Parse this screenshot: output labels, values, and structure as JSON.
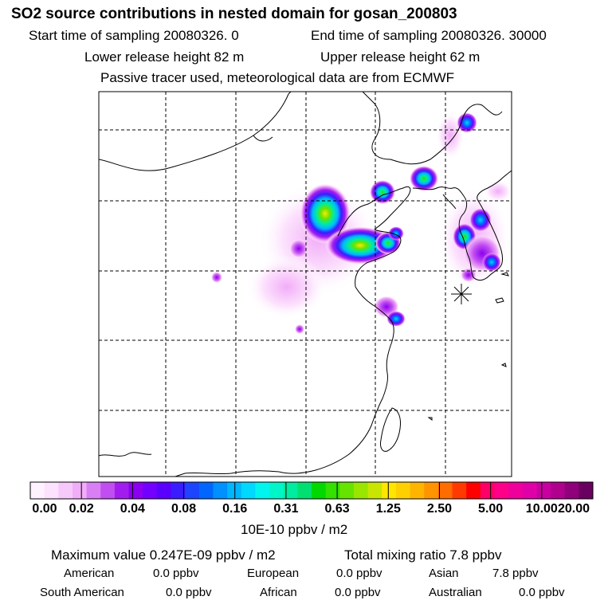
{
  "header": {
    "title": "SO2 source contributions in nested domain for gosan_200803",
    "start_sampling": "Start time of sampling 20080326.     0",
    "end_sampling": "End time of sampling 20080326. 30000",
    "lower_release": "Lower release height   82 m",
    "upper_release": "Upper release height   62 m",
    "tracer_note": "Passive tracer used, meteorological data are from ECMWF"
  },
  "map": {
    "receptor_marker": "receptor-star",
    "plumes": [
      {
        "id": "beijing-tianjin",
        "peak": 0.9
      },
      {
        "id": "shandong-north",
        "peak": 0.75
      },
      {
        "id": "shenyang",
        "peak": 0.6
      },
      {
        "id": "dalian",
        "peak": 0.55
      },
      {
        "id": "pyongyang",
        "peak": 0.45
      },
      {
        "id": "seoul",
        "peak": 0.4
      },
      {
        "id": "busan",
        "peak": 0.35
      },
      {
        "id": "shanghai",
        "peak": 0.15
      }
    ]
  },
  "colorbar": {
    "colors": [
      "#fff2ff",
      "#fce2fd",
      "#f7c9fb",
      "#f2adf8",
      "#d97ff5",
      "#c14ef1",
      "#a31cef",
      "#8b00f0",
      "#7300ff",
      "#5a00ff",
      "#3a1cff",
      "#1e44ff",
      "#0066ff",
      "#0090ff",
      "#00b6ff",
      "#00d8ff",
      "#00f5ee",
      "#00f5c8",
      "#00eca0",
      "#00e070",
      "#00d800",
      "#33e000",
      "#66e400",
      "#99e600",
      "#c8e600",
      "#ffe600",
      "#ffd000",
      "#ffb400",
      "#ff9400",
      "#ff6c00",
      "#ff3a00",
      "#ff0000",
      "#ff0066",
      "#ff0088",
      "#f0009a",
      "#e000a8",
      "#c800a0",
      "#b0008e",
      "#90007a",
      "#6a0060"
    ],
    "tick_labels": [
      "0.00",
      "0.02",
      "0.04",
      "0.08",
      "0.16",
      "0.31",
      "0.63",
      "1.25",
      "2.50",
      "5.00",
      "10.00",
      "20.00"
    ],
    "unit": "10E-10 ppbv / m2"
  },
  "summary": {
    "maximum_value": "Maximum value  0.247E-09 ppbv / m2",
    "total_mixing_ratio": "Total mixing ratio       7.8 ppbv",
    "american_label": "American",
    "american_value": "0.0 ppbv",
    "european_label": "European",
    "european_value": "0.0 ppbv",
    "asian_label": "Asian",
    "asian_value": "7.8 ppbv",
    "south_american_label": "South American",
    "south_american_value": "0.0 ppbv",
    "african_label": "African",
    "african_value": "0.0 ppbv",
    "australian_label": "Australian",
    "australian_value": "0.0 ppbv"
  }
}
